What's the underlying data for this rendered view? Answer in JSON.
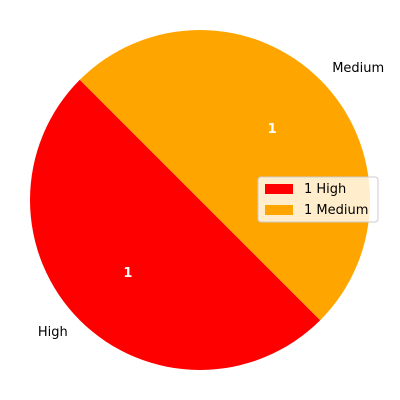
{
  "chart_data": {
    "type": "pie",
    "title": "",
    "slices": [
      {
        "label": "High",
        "value": 1,
        "value_label": "1",
        "color": "#ff0000"
      },
      {
        "label": "Medium",
        "value": 1,
        "value_label": "1",
        "color": "#ffa500"
      }
    ],
    "start_angle_deg": 135,
    "direction": "counterclockwise",
    "legend": {
      "placement": "right",
      "entries": [
        {
          "label": "1 High",
          "color": "#ff0000"
        },
        {
          "label": "1 Medium",
          "color": "#ffa500"
        }
      ]
    }
  }
}
